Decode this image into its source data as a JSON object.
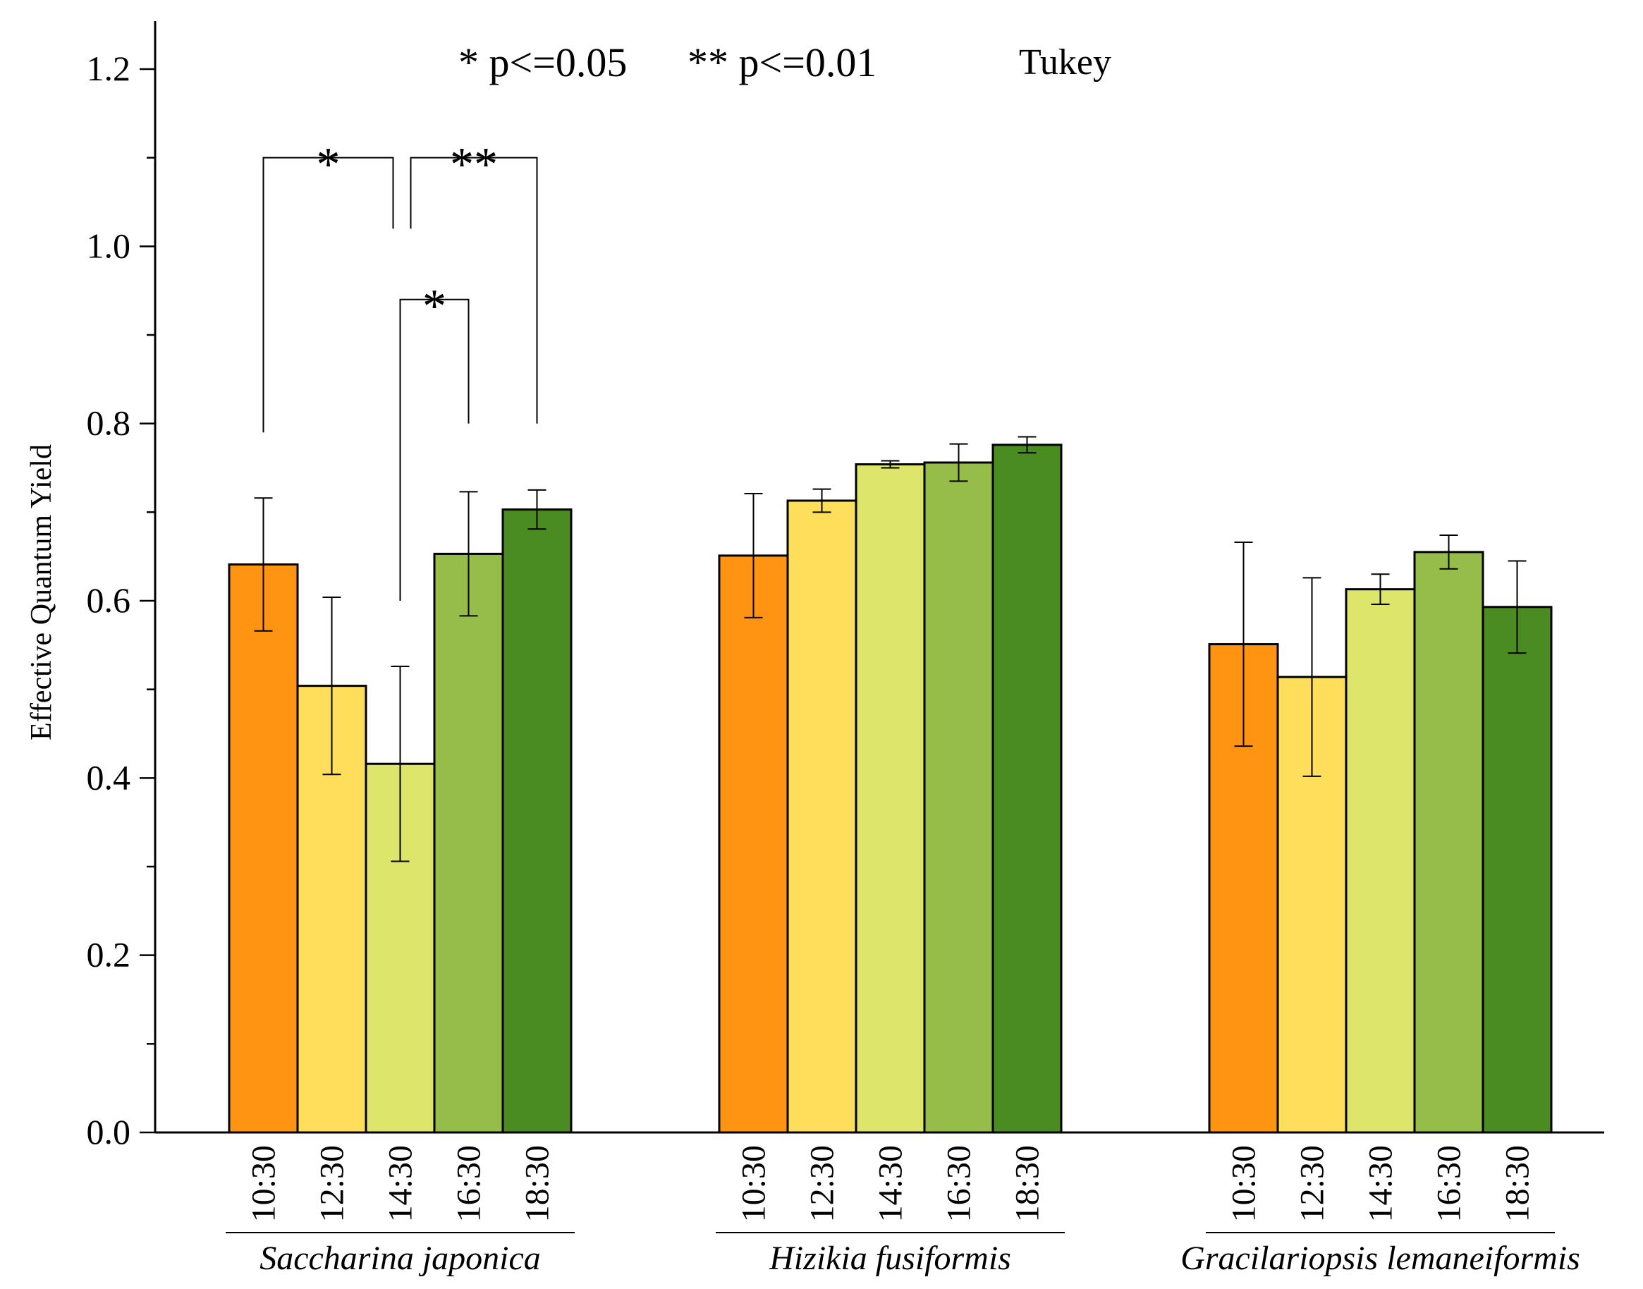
{
  "chart_data": {
    "type": "bar",
    "title": "",
    "xlabel": "",
    "ylabel": "Effective Quantum Yield",
    "ylim": [
      0,
      1.25
    ],
    "yticks": [
      "0.0",
      "0.2",
      "0.4",
      "0.6",
      "0.8",
      "1.0",
      "1.2"
    ],
    "grid": false,
    "annotation": {
      "sig1": "* p<=0.05",
      "sig2": "** p<=0.01",
      "test": "Tukey"
    },
    "time_labels": [
      "10:30",
      "12:30",
      "14:30",
      "16:30",
      "18:30"
    ],
    "colors": [
      "#FF9312",
      "#FEDE5A",
      "#DDE66A",
      "#96BD4A",
      "#4A8B22"
    ],
    "groups": [
      {
        "name": "Saccharina japonica",
        "values": [
          0.641,
          0.504,
          0.416,
          0.653,
          0.703
        ],
        "errors": [
          0.075,
          0.1,
          0.11,
          0.07,
          0.022
        ]
      },
      {
        "name": "Hizikia fusiformis",
        "values": [
          0.651,
          0.713,
          0.754,
          0.756,
          0.776
        ],
        "errors": [
          0.07,
          0.013,
          0.004,
          0.021,
          0.009
        ]
      },
      {
        "name": "Gracilariopsis lemaneiformis",
        "values": [
          0.551,
          0.514,
          0.613,
          0.655,
          0.593
        ],
        "errors": [
          0.115,
          0.112,
          0.017,
          0.019,
          0.052
        ]
      }
    ],
    "significance": [
      {
        "group": 0,
        "from": 0,
        "to": 2,
        "label": "*"
      },
      {
        "group": 0,
        "from": 2,
        "to": 4,
        "label": "**"
      },
      {
        "group": 0,
        "from": 2,
        "to": 3,
        "label": "*"
      }
    ]
  }
}
